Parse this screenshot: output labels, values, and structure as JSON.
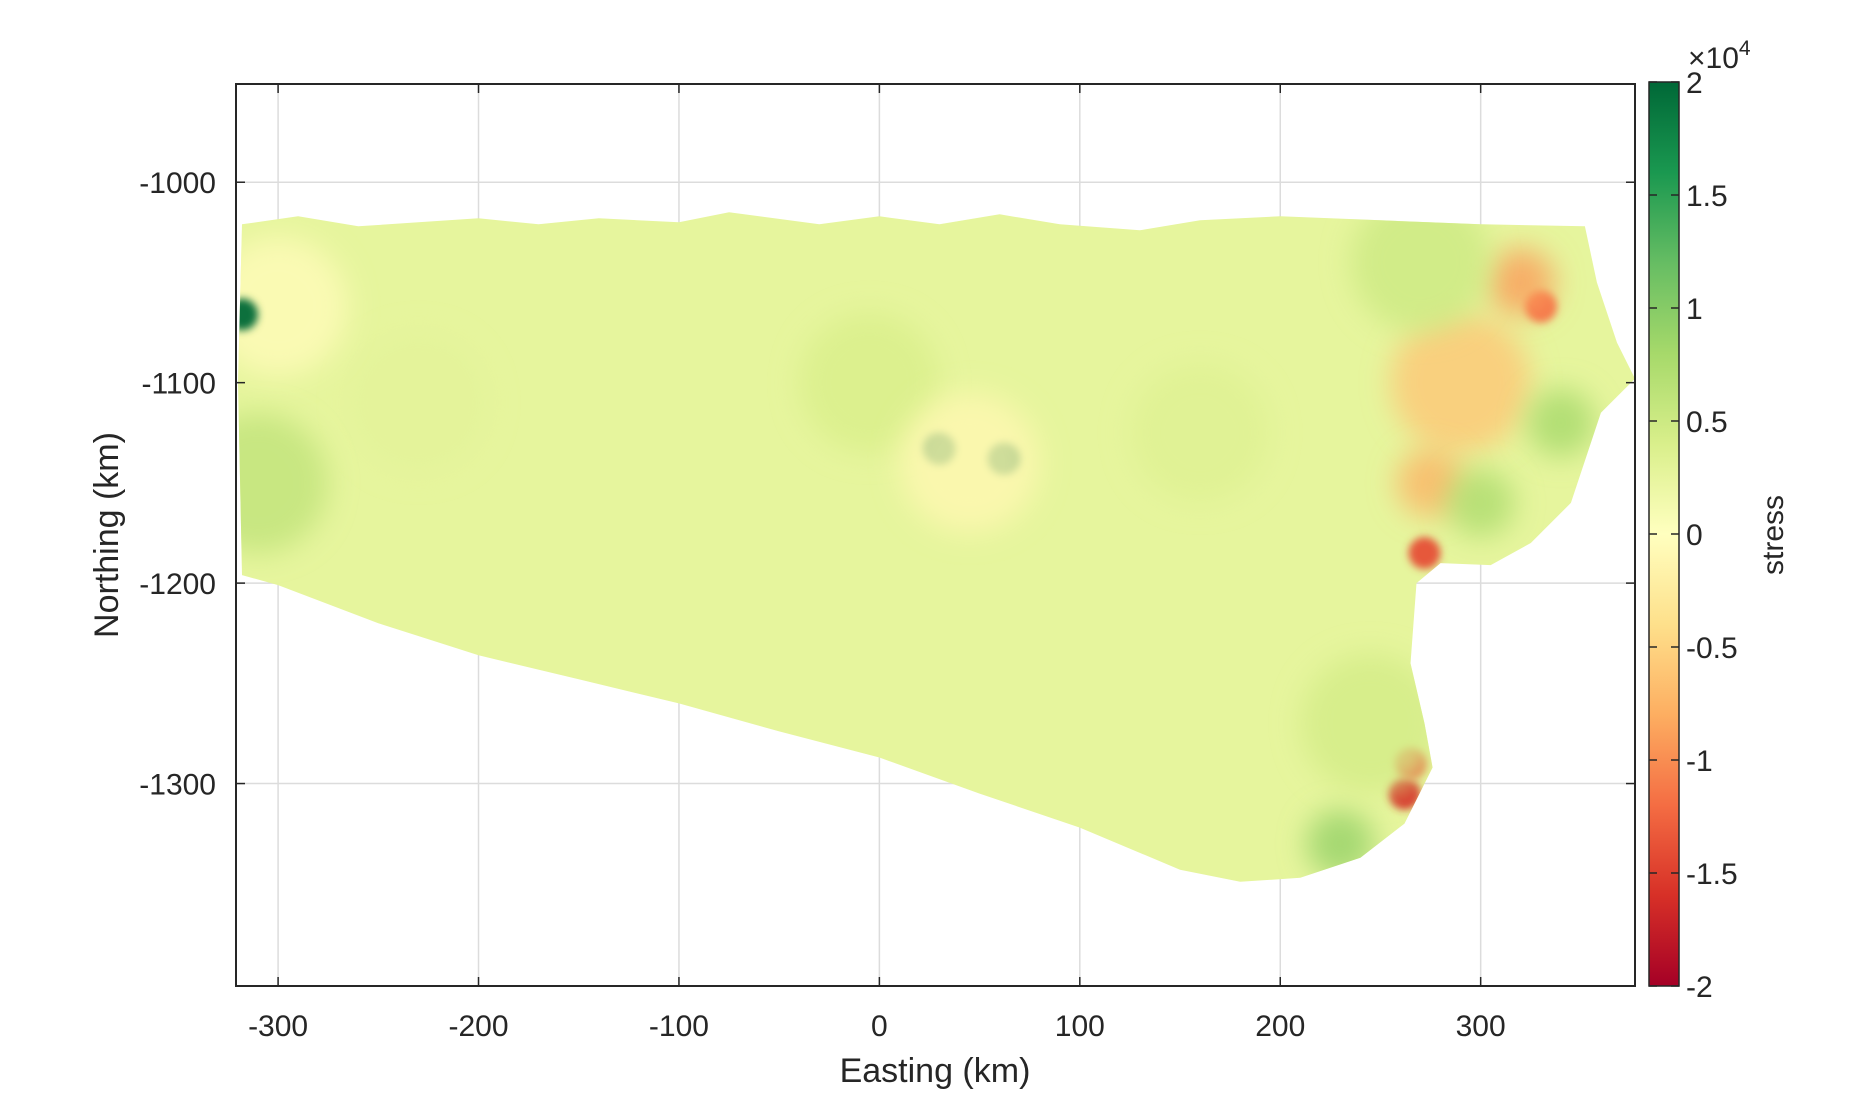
{
  "chart_data": {
    "type": "heatmap",
    "title": "",
    "xlabel": "Easting (km)",
    "ylabel": "Northing (km)",
    "xlim": [
      -321,
      377
    ],
    "ylim": [
      -1401,
      -951
    ],
    "grid": true,
    "x_ticks": [
      -300,
      -200,
      -100,
      0,
      100,
      200,
      300
    ],
    "x_tick_labels": [
      "-300",
      "-200",
      "-100",
      "0",
      "100",
      "200",
      "300"
    ],
    "y_ticks": [
      -1000,
      -1100,
      -1200,
      -1300
    ],
    "y_tick_labels": [
      "-1000",
      "-1100",
      "-1200",
      "-1300"
    ],
    "colorbar": {
      "label": "stress",
      "exponent_label": "×10",
      "exponent_power": "4",
      "range": [
        -20000,
        20000
      ],
      "ticks": [
        20000,
        15000,
        10000,
        5000,
        0,
        -5000,
        -10000,
        -15000,
        -20000
      ],
      "tick_labels": [
        "2",
        "1.5",
        "1",
        "0.5",
        "0",
        "-0.5",
        "-1",
        "-1.5",
        "-2"
      ],
      "colormap": [
        "#a50026",
        "#d73027",
        "#f46d43",
        "#fdae61",
        "#fee08b",
        "#ffffbf",
        "#d9ef8b",
        "#a6d96a",
        "#66bd63",
        "#1a9850",
        "#006837"
      ]
    },
    "domain_outline": [
      [
        -318,
        -1021
      ],
      [
        -290,
        -1017
      ],
      [
        -260,
        -1022
      ],
      [
        -230,
        -1020
      ],
      [
        -200,
        -1018
      ],
      [
        -170,
        -1021
      ],
      [
        -140,
        -1018
      ],
      [
        -100,
        -1020
      ],
      [
        -75,
        -1015
      ],
      [
        -30,
        -1021
      ],
      [
        0,
        -1017
      ],
      [
        30,
        -1021
      ],
      [
        60,
        -1016
      ],
      [
        90,
        -1021
      ],
      [
        130,
        -1024
      ],
      [
        160,
        -1019
      ],
      [
        200,
        -1017
      ],
      [
        250,
        -1019
      ],
      [
        300,
        -1021
      ],
      [
        352,
        -1022
      ],
      [
        358,
        -1050
      ],
      [
        368,
        -1080
      ],
      [
        377,
        -1098
      ],
      [
        360,
        -1115
      ],
      [
        345,
        -1160
      ],
      [
        325,
        -1180
      ],
      [
        305,
        -1191
      ],
      [
        280,
        -1190
      ],
      [
        268,
        -1200
      ],
      [
        265,
        -1240
      ],
      [
        272,
        -1270
      ],
      [
        276,
        -1292
      ],
      [
        262,
        -1320
      ],
      [
        240,
        -1337
      ],
      [
        210,
        -1347
      ],
      [
        180,
        -1349
      ],
      [
        150,
        -1343
      ],
      [
        100,
        -1322
      ],
      [
        50,
        -1305
      ],
      [
        0,
        -1287
      ],
      [
        -50,
        -1274
      ],
      [
        -100,
        -1260
      ],
      [
        -150,
        -1248
      ],
      [
        -200,
        -1236
      ],
      [
        -250,
        -1220
      ],
      [
        -300,
        -1201
      ],
      [
        -318,
        -1196
      ],
      [
        -320,
        -1100
      ]
    ],
    "field_features": [
      {
        "x": -5,
        "y": -1100,
        "stress": 4000
      },
      {
        "x": 160,
        "y": -1125,
        "stress": 3500
      },
      {
        "x": -230,
        "y": -1110,
        "stress": 3000
      },
      {
        "x": -300,
        "y": -1062,
        "stress": -500
      },
      {
        "x": -310,
        "y": -1150,
        "stress": 6000
      },
      {
        "x": -318,
        "y": -1066,
        "stress": 20000
      },
      {
        "x": 30,
        "y": -1133,
        "stress": 20000
      },
      {
        "x": 62,
        "y": -1138,
        "stress": 20000
      },
      {
        "x": 45,
        "y": -1140,
        "stress": -1000
      },
      {
        "x": 330,
        "y": -1062,
        "stress": -12000
      },
      {
        "x": 320,
        "y": -1050,
        "stress": -9000
      },
      {
        "x": 290,
        "y": -1100,
        "stress": -6000
      },
      {
        "x": 275,
        "y": -1150,
        "stress": -7500
      },
      {
        "x": 272,
        "y": -1185,
        "stress": -14000
      },
      {
        "x": 262,
        "y": -1305,
        "stress": -16000
      },
      {
        "x": 265,
        "y": -1290,
        "stress": -13000
      },
      {
        "x": 340,
        "y": -1120,
        "stress": 8000
      },
      {
        "x": 300,
        "y": -1160,
        "stress": 7500
      },
      {
        "x": 230,
        "y": -1330,
        "stress": 9000
      },
      {
        "x": 245,
        "y": -1270,
        "stress": 4500
      },
      {
        "x": 270,
        "y": -1040,
        "stress": 5000
      }
    ]
  }
}
